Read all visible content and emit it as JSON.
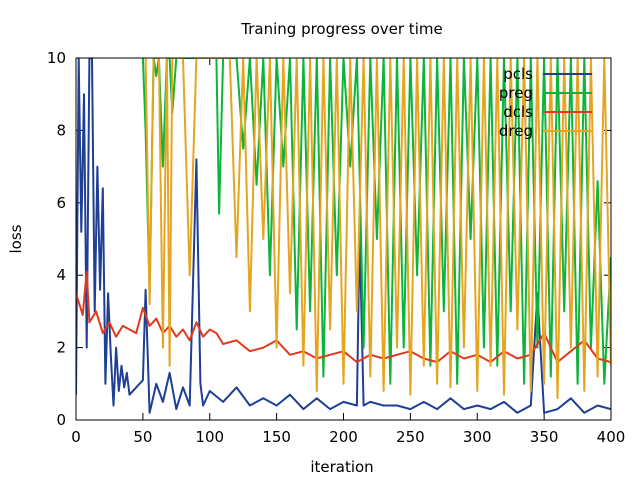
{
  "chart_data": {
    "type": "line",
    "title": "Traning progress over time",
    "xlabel": "iteration",
    "ylabel": "loss",
    "xlim": [
      0,
      400
    ],
    "ylim": [
      0,
      10
    ],
    "xticks": [
      0,
      50,
      100,
      150,
      200,
      250,
      300,
      350,
      400
    ],
    "yticks": [
      0,
      2,
      4,
      6,
      8,
      10
    ],
    "xtick_labels": [
      "0",
      "50",
      "100",
      "150",
      "200",
      "250",
      "300",
      "350",
      "400"
    ],
    "ytick_labels": [
      "0",
      "2",
      "4",
      "6",
      "8",
      "10"
    ],
    "grid": false,
    "legend_position": "top-right",
    "colors": {
      "pcls": "#1f3f94",
      "preg": "#0db33a",
      "dcls": "#e03a1e",
      "dreg": "#e5a520"
    },
    "series": [
      {
        "name": "pcls",
        "x": [
          0,
          2,
          4,
          6,
          8,
          10,
          12,
          14,
          16,
          18,
          20,
          22,
          24,
          26,
          28,
          30,
          32,
          34,
          36,
          38,
          40,
          45,
          50,
          52,
          55,
          60,
          65,
          70,
          75,
          80,
          85,
          90,
          93,
          95,
          100,
          110,
          120,
          130,
          140,
          150,
          160,
          170,
          180,
          190,
          200,
          210,
          212,
          215,
          220,
          230,
          240,
          250,
          260,
          270,
          280,
          290,
          300,
          310,
          320,
          330,
          340,
          345,
          350,
          360,
          370,
          380,
          390,
          400
        ],
        "y": [
          0.7,
          10,
          5.2,
          9,
          2.0,
          10,
          10,
          3.0,
          7.0,
          3.6,
          6.4,
          1.0,
          3.5,
          1.8,
          0.4,
          2.0,
          0.8,
          1.5,
          0.9,
          1.3,
          0.7,
          0.9,
          1.1,
          3.6,
          0.2,
          1.0,
          0.5,
          1.3,
          0.3,
          0.9,
          0.4,
          7.2,
          1.0,
          0.4,
          0.8,
          0.5,
          0.9,
          0.4,
          0.6,
          0.4,
          0.7,
          0.3,
          0.6,
          0.3,
          0.5,
          0.4,
          5.2,
          0.4,
          0.5,
          0.4,
          0.4,
          0.3,
          0.5,
          0.3,
          0.6,
          0.3,
          0.4,
          0.3,
          0.5,
          0.2,
          0.4,
          3.5,
          0.2,
          0.3,
          0.6,
          0.2,
          0.4,
          0.3
        ]
      },
      {
        "name": "preg",
        "x": [
          50,
          52,
          55,
          58,
          60,
          62,
          65,
          68,
          70,
          72,
          75,
          80,
          85,
          90,
          95,
          100,
          105,
          107,
          110,
          115,
          120,
          125,
          130,
          135,
          140,
          145,
          150,
          155,
          160,
          165,
          170,
          175,
          180,
          185,
          190,
          195,
          200,
          205,
          210,
          215,
          220,
          225,
          230,
          235,
          240,
          245,
          250,
          255,
          260,
          265,
          270,
          275,
          280,
          285,
          290,
          295,
          300,
          305,
          310,
          315,
          320,
          325,
          330,
          335,
          340,
          345,
          350,
          355,
          360,
          365,
          370,
          375,
          380,
          385,
          390,
          395,
          400
        ],
        "y": [
          10,
          8.0,
          3.5,
          10,
          9.5,
          10,
          7.0,
          10,
          10,
          8.5,
          10,
          10,
          10,
          10,
          10,
          10,
          10,
          5.7,
          10,
          10,
          10,
          7.5,
          10,
          6.5,
          10,
          4.0,
          10,
          7.0,
          10,
          2.5,
          10,
          3.0,
          10,
          1.2,
          10,
          4.0,
          10,
          7.0,
          10,
          2.0,
          10,
          5.0,
          10,
          1.0,
          10,
          2.0,
          10,
          4.0,
          10,
          1.5,
          10,
          3.0,
          10,
          1.0,
          10,
          5.0,
          10,
          2.0,
          10,
          1.5,
          10,
          3.0,
          10,
          1.0,
          10,
          2.0,
          10,
          1.2,
          10,
          3.0,
          10,
          1.0,
          10,
          2.0,
          6.6,
          1.0,
          4.5
        ]
      },
      {
        "name": "dcls",
        "x": [
          0,
          5,
          8,
          10,
          15,
          20,
          25,
          30,
          35,
          40,
          45,
          50,
          55,
          60,
          65,
          70,
          75,
          80,
          85,
          90,
          95,
          100,
          105,
          110,
          120,
          130,
          140,
          150,
          160,
          170,
          180,
          190,
          200,
          210,
          220,
          230,
          240,
          250,
          260,
          270,
          280,
          290,
          300,
          310,
          320,
          330,
          340,
          350,
          360,
          370,
          380,
          390,
          400
        ],
        "y": [
          3.5,
          2.9,
          4.1,
          2.7,
          3.0,
          2.4,
          2.7,
          2.3,
          2.6,
          2.5,
          2.4,
          3.1,
          2.6,
          2.8,
          2.4,
          2.6,
          2.3,
          2.5,
          2.2,
          2.7,
          2.3,
          2.5,
          2.4,
          2.1,
          2.2,
          1.9,
          2.0,
          2.2,
          1.8,
          1.9,
          1.7,
          1.8,
          1.9,
          1.6,
          1.8,
          1.7,
          1.8,
          1.9,
          1.7,
          1.6,
          1.9,
          1.7,
          1.8,
          1.6,
          1.9,
          1.7,
          1.8,
          2.4,
          1.6,
          1.9,
          2.2,
          1.7,
          1.6
        ]
      },
      {
        "name": "dreg",
        "x": [
          52,
          55,
          58,
          62,
          65,
          68,
          70,
          72,
          75,
          80,
          85,
          90,
          95,
          100,
          105,
          110,
          115,
          120,
          125,
          130,
          135,
          140,
          145,
          150,
          155,
          160,
          165,
          170,
          175,
          180,
          185,
          190,
          195,
          200,
          205,
          210,
          215,
          220,
          225,
          230,
          235,
          240,
          245,
          250,
          255,
          260,
          265,
          270,
          275,
          280,
          285,
          290,
          295,
          300,
          305,
          310,
          315,
          320,
          325,
          330,
          335,
          340,
          345,
          350,
          355,
          360,
          365,
          370,
          375,
          380,
          385,
          390,
          395,
          400
        ],
        "y": [
          10,
          3.2,
          10,
          10,
          2.0,
          10,
          1.5,
          10,
          10,
          10,
          4.0,
          10,
          10,
          10,
          10,
          10,
          10,
          4.5,
          10,
          3.0,
          10,
          5.0,
          10,
          2.0,
          10,
          3.5,
          10,
          1.5,
          10,
          0.8,
          10,
          2.5,
          10,
          1.0,
          10,
          3.0,
          10,
          1.2,
          10,
          0.8,
          10,
          2.0,
          10,
          0.7,
          10,
          1.5,
          10,
          1.0,
          10,
          0.9,
          10,
          2.0,
          10,
          0.8,
          10,
          1.5,
          10,
          0.7,
          10,
          2.5,
          10,
          0.8,
          10,
          1.0,
          10,
          0.6,
          10,
          2.0,
          10,
          0.8,
          10,
          1.2,
          10,
          1.5
        ]
      }
    ]
  }
}
